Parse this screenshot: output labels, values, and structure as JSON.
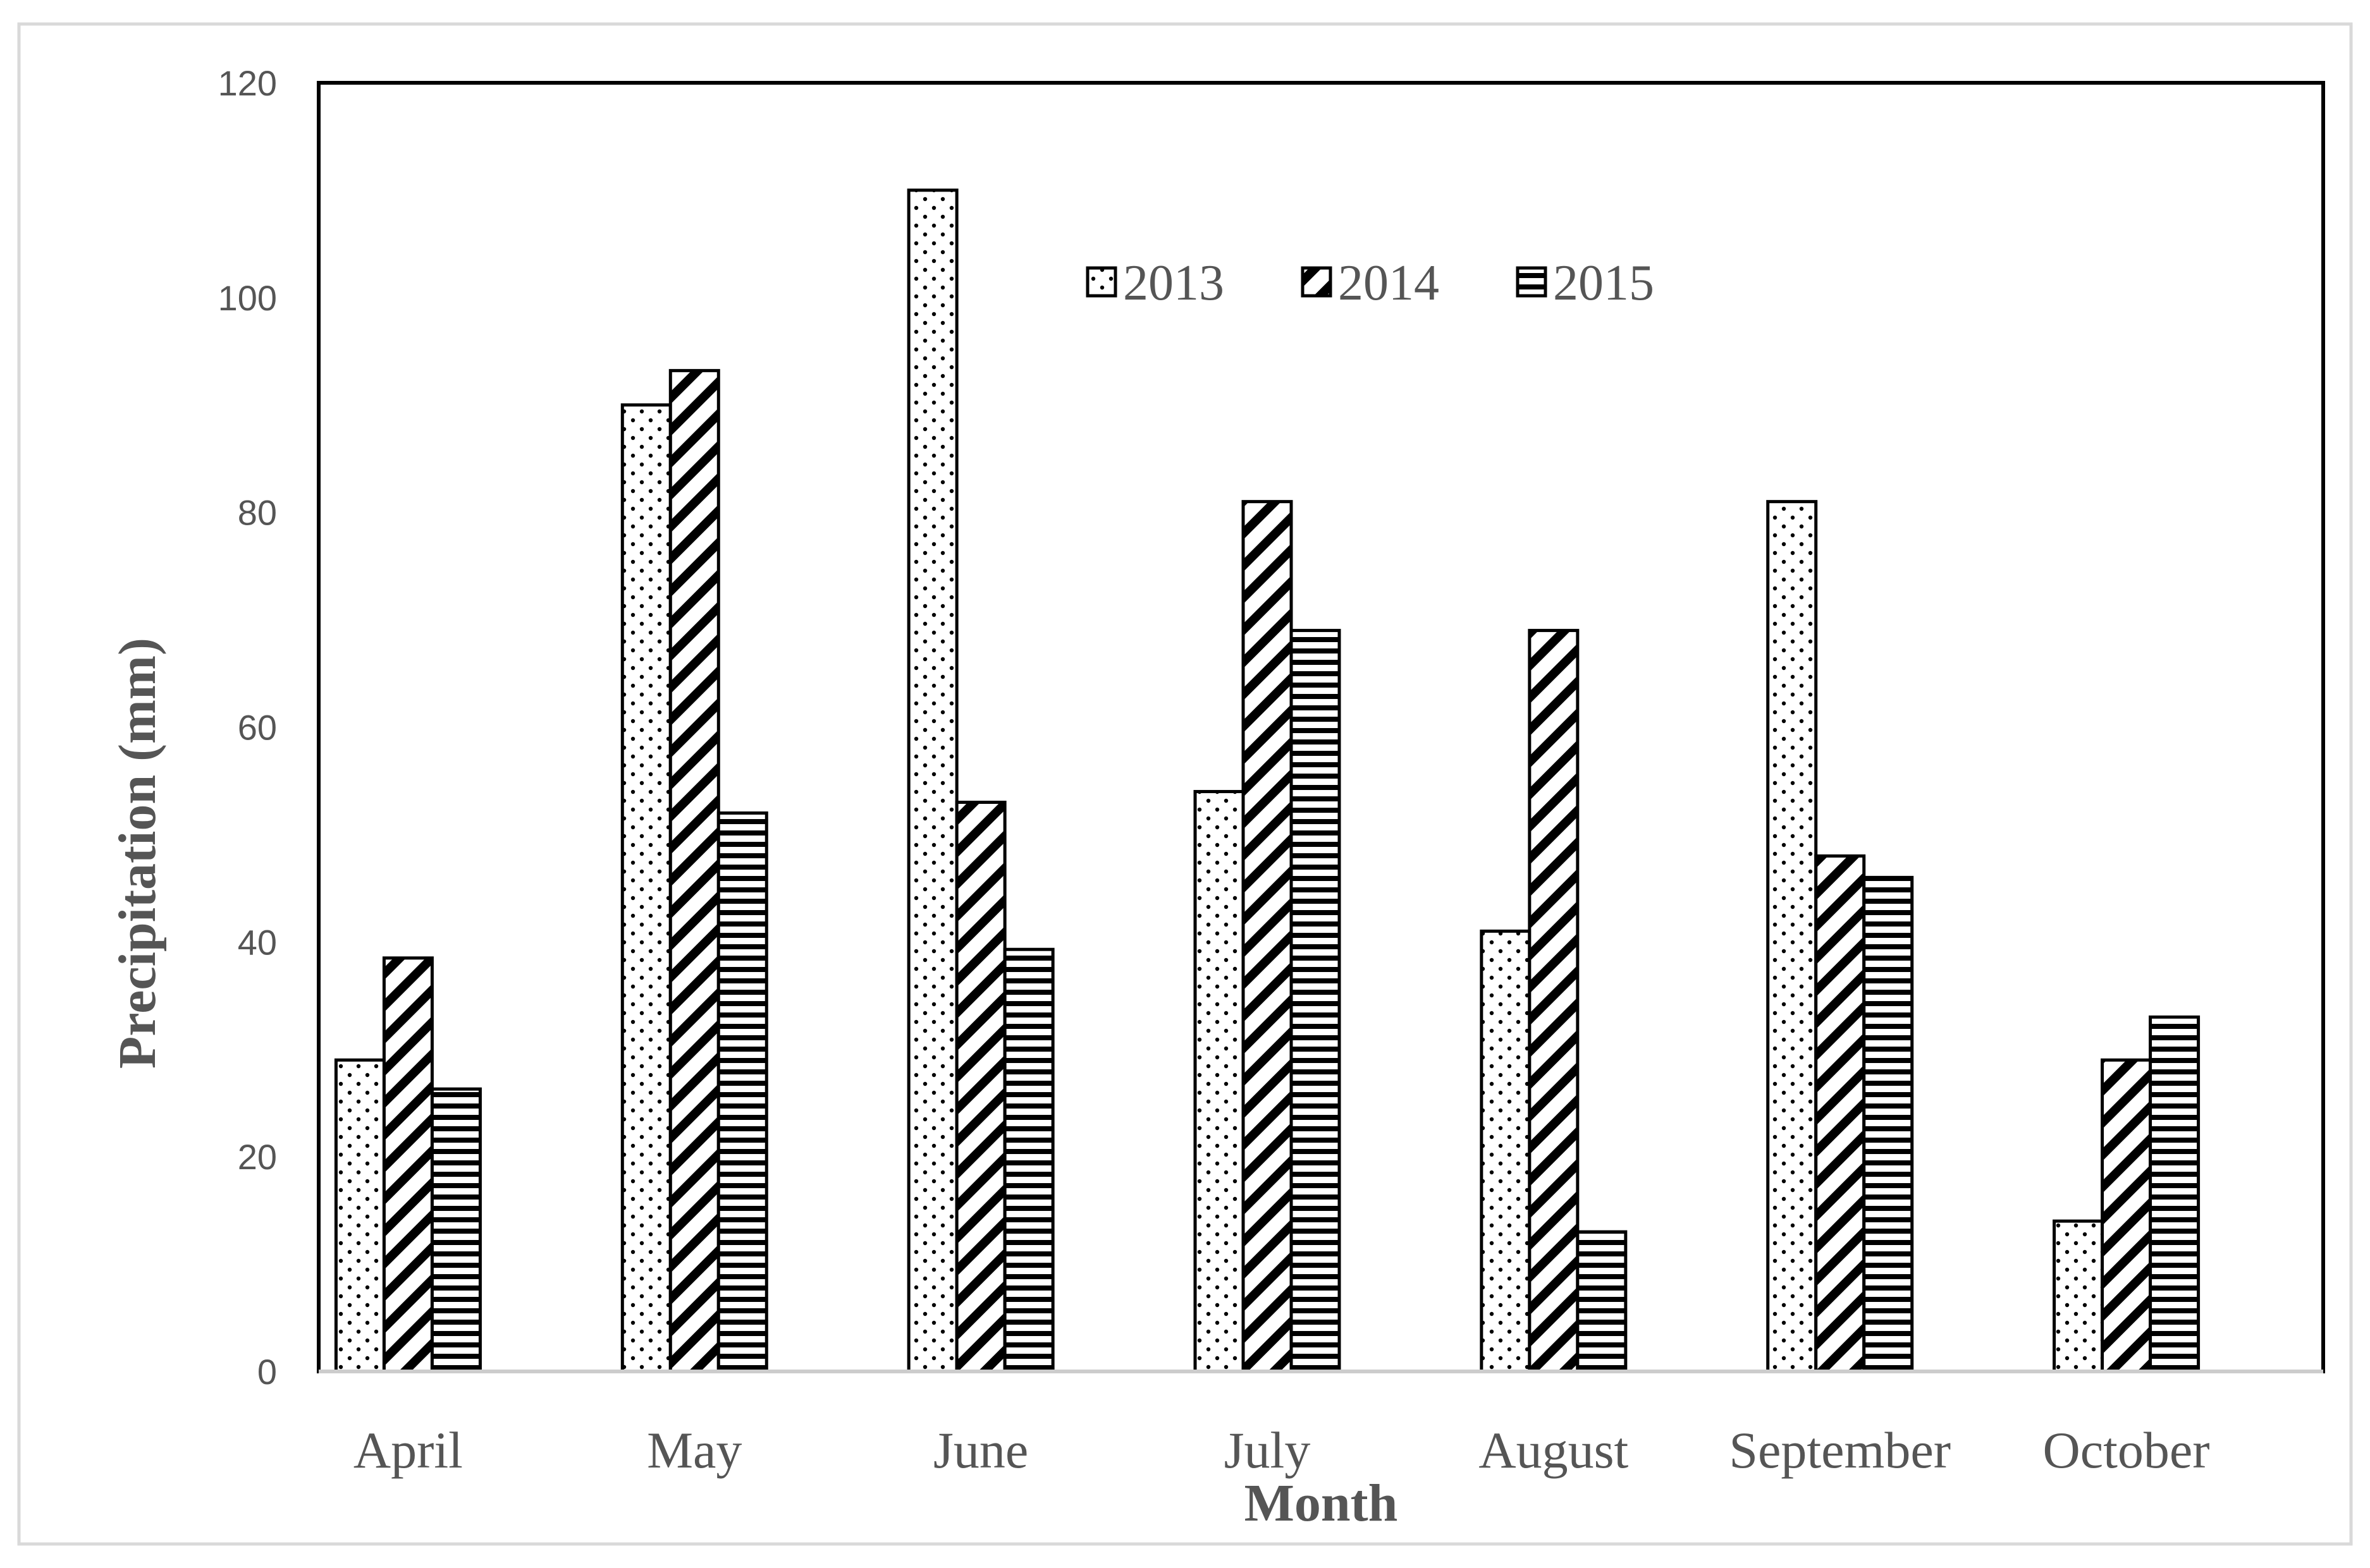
{
  "chart_data": {
    "type": "bar",
    "title": "",
    "xlabel": "Month",
    "ylabel": "Precipitation (mm)",
    "ylim": [
      0,
      120
    ],
    "yticks": [
      0,
      20,
      40,
      60,
      80,
      100,
      120
    ],
    "categories": [
      "April",
      "May",
      "June",
      "July",
      "August",
      "September",
      "October"
    ],
    "series": [
      {
        "name": "2013",
        "pattern": "dots",
        "values": [
          29,
          90,
          110,
          54,
          41,
          81,
          14
        ]
      },
      {
        "name": "2014",
        "pattern": "diagonal-hatch",
        "values": [
          38.5,
          93.2,
          53,
          81,
          69,
          48,
          29
        ]
      },
      {
        "name": "2015",
        "pattern": "horizontal-stripes",
        "values": [
          26.3,
          52,
          39.3,
          69,
          13,
          46,
          33
        ]
      }
    ],
    "legend_position": "top-center",
    "grid": false,
    "colors": {
      "bar_fill": "#ffffff",
      "bar_stroke": "#000000",
      "text": "#555555",
      "frame": "#000000"
    }
  }
}
